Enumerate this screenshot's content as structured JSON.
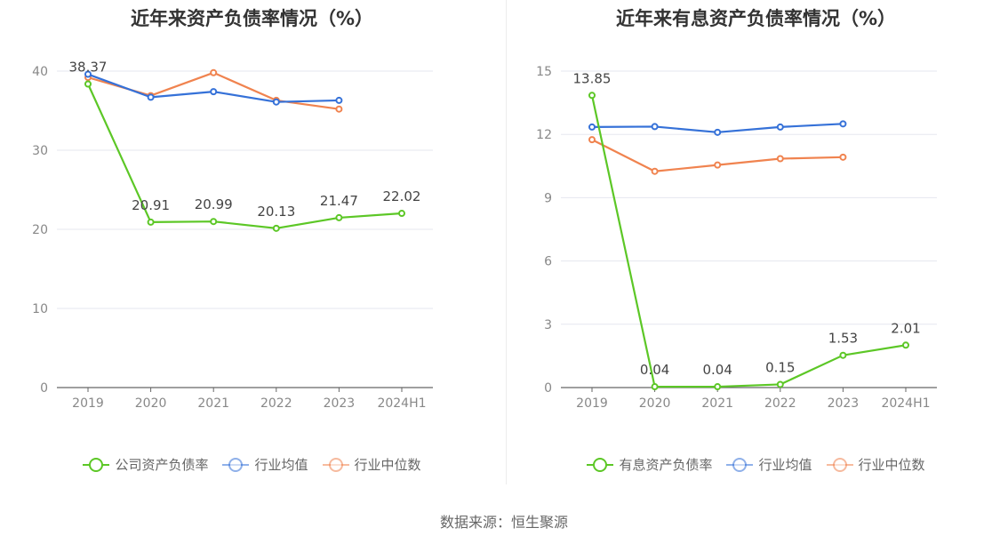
{
  "source": "数据来源：恒生聚源",
  "colors": {
    "company": "#5cc726",
    "industry_avg": "#3571d8",
    "industry_median": "#f0834f",
    "grid": "#e5e7ef",
    "axis": "#666666",
    "label": "#444444"
  },
  "chart_data": [
    {
      "type": "line",
      "title": "近年来资产负债率情况（%）",
      "categories": [
        "2019",
        "2020",
        "2021",
        "2022",
        "2023",
        "2024H1"
      ],
      "ylim": [
        0,
        40
      ],
      "yticks": [
        "0",
        "10",
        "20",
        "30",
        "40"
      ],
      "yticks_values": [
        0,
        10,
        20,
        30,
        40
      ],
      "grid": true,
      "legend_position": "bottom",
      "series": [
        {
          "name": "公司资产负债率",
          "key": "company",
          "values": [
            38.37,
            20.91,
            20.99,
            20.13,
            21.47,
            22.02
          ],
          "labels": [
            "38.37",
            "20.91",
            "20.99",
            "20.13",
            "21.47",
            "22.02"
          ]
        },
        {
          "name": "行业均值",
          "key": "industry_avg",
          "values": [
            39.6,
            36.7,
            37.4,
            36.1,
            36.3,
            null
          ]
        },
        {
          "name": "行业中位数",
          "key": "industry_median",
          "values": [
            39.2,
            36.9,
            39.8,
            36.3,
            35.2,
            null
          ]
        }
      ]
    },
    {
      "type": "line",
      "title": "近年来有息资产负债率情况（%）",
      "categories": [
        "2019",
        "2020",
        "2021",
        "2022",
        "2023",
        "2024H1"
      ],
      "ylim": [
        0,
        15
      ],
      "yticks": [
        "0",
        "3",
        "6",
        "9",
        "12",
        "15"
      ],
      "yticks_values": [
        0,
        3,
        6,
        9,
        12,
        15
      ],
      "grid": true,
      "legend_position": "bottom",
      "series": [
        {
          "name": "有息资产负债率",
          "key": "company",
          "values": [
            13.85,
            0.04,
            0.04,
            0.15,
            1.53,
            2.01
          ],
          "labels": [
            "13.85",
            "0.04",
            "0.04",
            "0.15",
            "1.53",
            "2.01"
          ]
        },
        {
          "name": "行业均值",
          "key": "industry_avg",
          "values": [
            12.35,
            12.37,
            12.1,
            12.35,
            12.5,
            null
          ]
        },
        {
          "name": "行业中位数",
          "key": "industry_median",
          "values": [
            11.75,
            10.25,
            10.55,
            10.85,
            10.92,
            null
          ]
        }
      ]
    }
  ]
}
